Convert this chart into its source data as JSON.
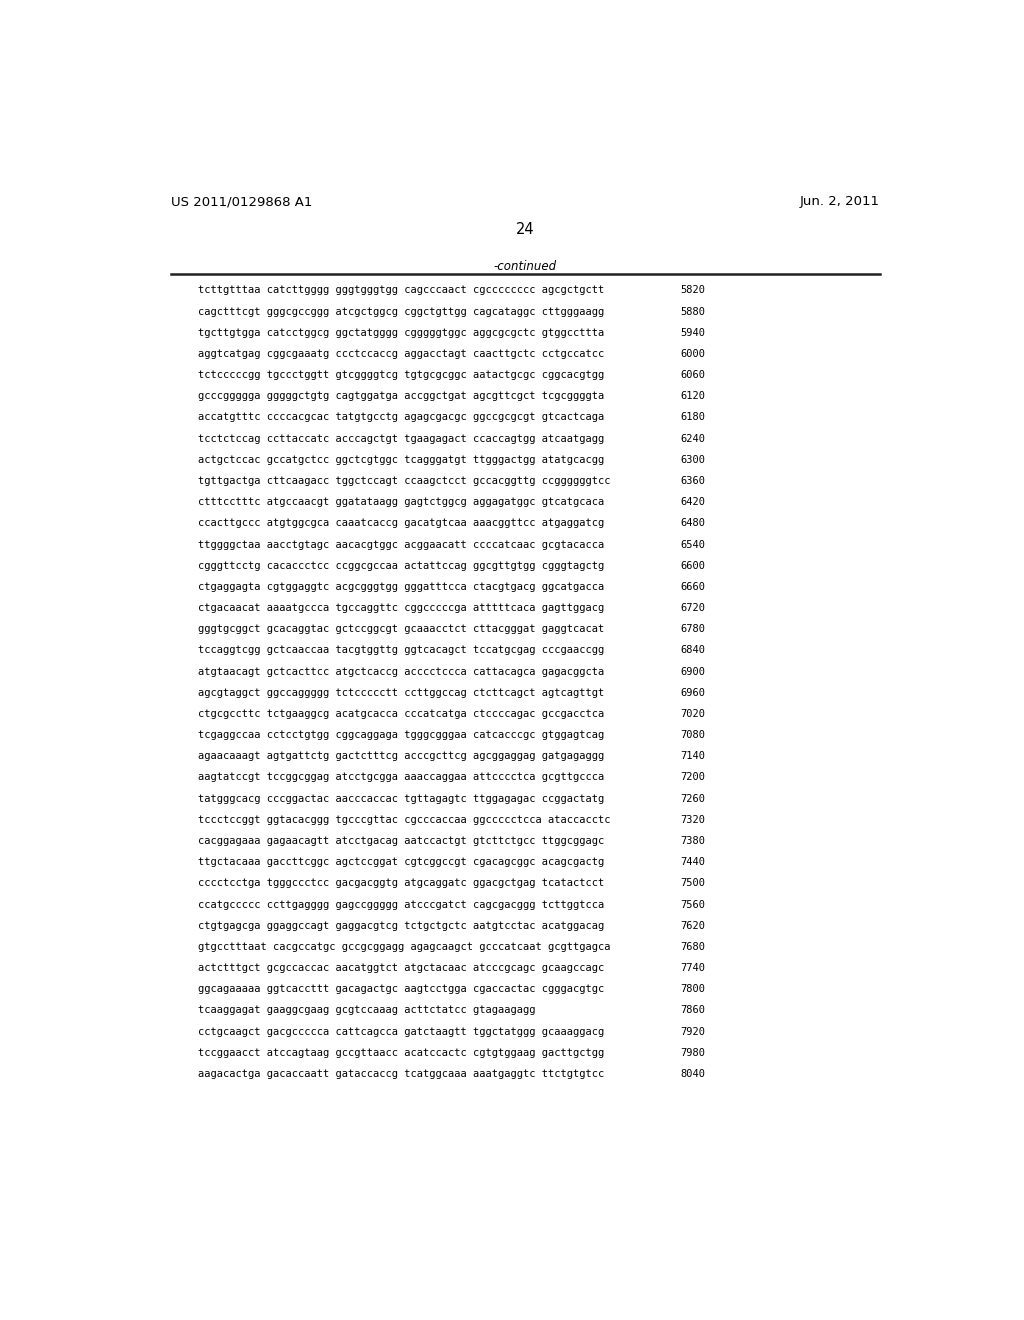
{
  "header_left": "US 2011/0129868 A1",
  "header_right": "Jun. 2, 2011",
  "page_number": "24",
  "continued_label": "-continued",
  "background_color": "#ffffff",
  "text_color": "#000000",
  "font_size": 7.5,
  "header_font_size": 9.5,
  "page_num_font_size": 10.5,
  "sequence_lines": [
    [
      "tcttgtttaa catcttgggg gggtgggtgg cagcccaact cgcccccccc agcgctgctt",
      "5820"
    ],
    [
      "cagctttcgt gggcgccggg atcgctggcg cggctgttgg cagcataggc cttgggaagg",
      "5880"
    ],
    [
      "tgcttgtgga catcctggcg ggctatgggg cgggggtggc aggcgcgctc gtggccttta",
      "5940"
    ],
    [
      "aggtcatgag cggcgaaatg ccctccaccg aggacctagt caacttgctc cctgccatcc",
      "6000"
    ],
    [
      "tctcccccgg tgccctggtt gtcggggtcg tgtgcgcggc aatactgcgc cggcacgtgg",
      "6060"
    ],
    [
      "gcccggggga gggggctgtg cagtggatga accggctgat agcgttcgct tcgcggggta",
      "6120"
    ],
    [
      "accatgtttc ccccacgcac tatgtgcctg agagcgacgc ggccgcgcgt gtcactcaga",
      "6180"
    ],
    [
      "tcctctccag ccttaccatc acccagctgt tgaagagact ccaccagtgg atcaatgagg",
      "6240"
    ],
    [
      "actgctccac gccatgctcc ggctcgtggc tcagggatgt ttgggactgg atatgcacgg",
      "6300"
    ],
    [
      "tgttgactga cttcaagacc tggctccagt ccaagctcct gccacggttg ccggggggtcc",
      "6360"
    ],
    [
      "ctttcctttc atgccaacgt ggatataagg gagtctggcg aggagatggc gtcatgcaca",
      "6420"
    ],
    [
      "ccacttgccc atgtggcgca caaatcaccg gacatgtcaa aaacggttcc atgaggatcg",
      "6480"
    ],
    [
      "ttggggctaa aacctgtagc aacacgtggc acggaacatt ccccatcaac gcgtacacca",
      "6540"
    ],
    [
      "cgggttcctg cacaccctcc ccggcgccaa actattccag ggcgttgtgg cgggtagctg",
      "6600"
    ],
    [
      "ctgaggagta cgtggaggtc acgcgggtgg gggatttcca ctacgtgacg ggcatgacca",
      "6660"
    ],
    [
      "ctgacaacat aaaatgccca tgccaggttc cggcccccga atttttcaca gagttggacg",
      "6720"
    ],
    [
      "gggtgcggct gcacaggtac gctccggcgt gcaaacctct cttacgggat gaggtcacat",
      "6780"
    ],
    [
      "tccaggtcgg gctcaaccaa tacgtggttg ggtcacagct tccatgcgag cccgaaccgg",
      "6840"
    ],
    [
      "atgtaacagt gctcacttcc atgctcaccg acccctccca cattacagca gagacggcta",
      "6900"
    ],
    [
      "agcgtaggct ggccaggggg tctccccctt ccttggccag ctcttcagct agtcagttgt",
      "6960"
    ],
    [
      "ctgcgccttc tctgaaggcg acatgcacca cccatcatga ctccccagac gccgacctca",
      "7020"
    ],
    [
      "tcgaggccaa cctcctgtgg cggcaggaga tgggcgggaa catcacccgc gtggagtcag",
      "7080"
    ],
    [
      "agaacaaagt agtgattctg gactctttcg acccgcttcg agcggaggag gatgagaggg",
      "7140"
    ],
    [
      "aagtatccgt tccggcggag atcctgcgga aaaccaggaa attcccctca gcgttgccca",
      "7200"
    ],
    [
      "tatgggcacg cccggactac aacccaccac tgttagagtc ttggagagac ccggactatg",
      "7260"
    ],
    [
      "tccctccggt ggtacacggg tgcccgttac cgcccaccaa ggccccctcca ataccacctc",
      "7320"
    ],
    [
      "cacggagaaa gagaacagtt atcctgacag aatccactgt gtcttctgcc ttggcggagc",
      "7380"
    ],
    [
      "ttgctacaaa gaccttcggc agctccggat cgtcggccgt cgacagcggc acagcgactg",
      "7440"
    ],
    [
      "cccctcctga tgggccctcc gacgacggtg atgcaggatc ggacgctgag tcatactcct",
      "7500"
    ],
    [
      "ccatgccccc ccttgagggg gagccggggg atcccgatct cagcgacggg tcttggtcca",
      "7560"
    ],
    [
      "ctgtgagcga ggaggccagt gaggacgtcg tctgctgctc aatgtcctac acatggacag",
      "7620"
    ],
    [
      "gtgcctttaat cacgccatgc gccgcggagg agagcaagct gcccatcaat gcgttgagca",
      "7680"
    ],
    [
      "actctttgct gcgccaccac aacatggtct atgctacaac atcccgcagc gcaagccagc",
      "7740"
    ],
    [
      "ggcagaaaaa ggtcaccttt gacagactgc aagtcctgga cgaccactac cgggacgtgc",
      "7800"
    ],
    [
      "tcaaggagat gaaggcgaag gcgtccaaag acttctatcc gtagaagagg",
      "7860"
    ],
    [
      "cctgcaagct gacgccccca cattcagcca gatctaagtt tggctatggg gcaaaggacg",
      "7920"
    ],
    [
      "tccggaacct atccagtaag gccgttaacc acatccactc cgtgtggaag gacttgctgg",
      "7980"
    ],
    [
      "aagacactga gacaccaatt gataccaccg tcatggcaaa aaatgaggtc ttctgtgtcc",
      "8040"
    ]
  ]
}
